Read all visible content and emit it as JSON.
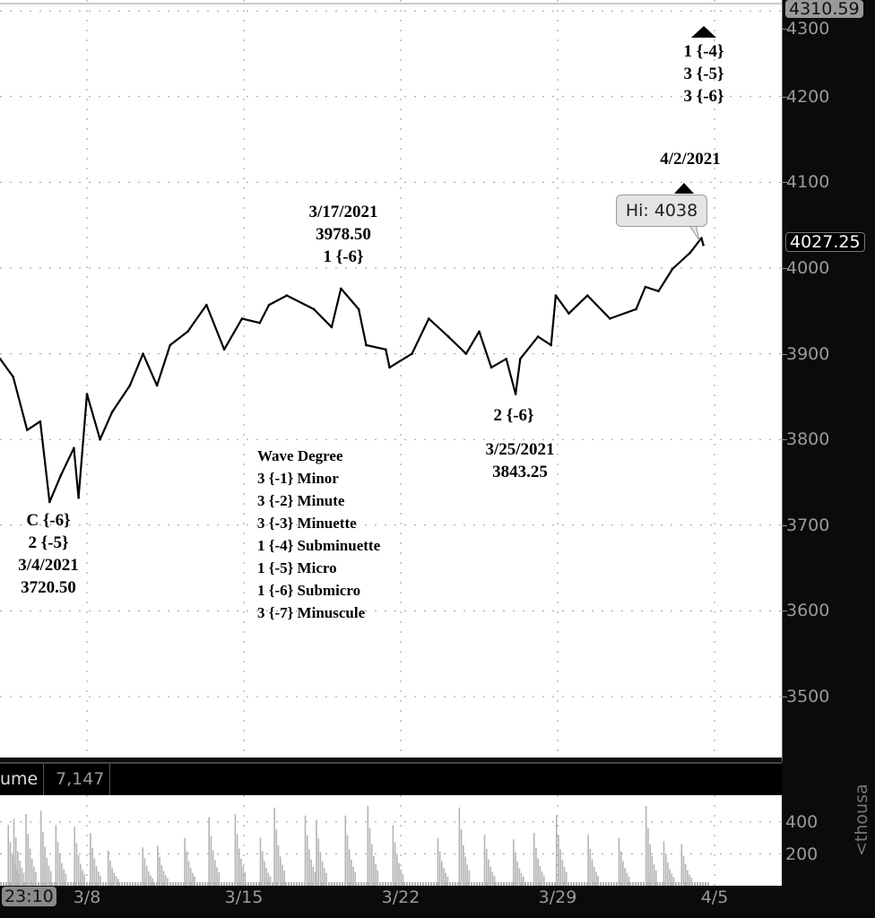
{
  "chart_data": [
    {
      "type": "line",
      "title": "",
      "ylim": [
        3420,
        4310
      ],
      "xlim": [
        "2021-03-04T03:00",
        "2021-04-06T00:00"
      ],
      "grid": true,
      "yticks": [
        3500,
        3600,
        3700,
        3800,
        3900,
        4000,
        4100,
        4200,
        4300
      ],
      "xticks": [
        {
          "date": "2021-03-08",
          "label": "3/8"
        },
        {
          "date": "2021-03-15",
          "label": "3/15"
        },
        {
          "date": "2021-03-22",
          "label": "3/22"
        },
        {
          "date": "2021-03-29",
          "label": "3/29"
        },
        {
          "date": "2021-04-05",
          "label": "4/5"
        }
      ],
      "top_price_label": "4310.59",
      "last_price_label": "4027.25",
      "line_color": "#000000",
      "series": [
        {
          "points": [
            [
              "2021-03-04T03:00",
              3894
            ],
            [
              "2021-03-04T17:00",
              3873
            ],
            [
              "2021-03-05T08:00",
              3811
            ],
            [
              "2021-03-05T22:00",
              3821
            ],
            [
              "2021-03-06T08:00",
              3727
            ],
            [
              "2021-03-06T20:00",
              3758
            ],
            [
              "2021-03-07T10:00",
              3790
            ],
            [
              "2021-03-07T15:00",
              3732
            ],
            [
              "2021-03-08T00:00",
              3853
            ],
            [
              "2021-03-08T14:00",
              3800
            ],
            [
              "2021-03-09T03:00",
              3832
            ],
            [
              "2021-03-09T22:00",
              3863
            ],
            [
              "2021-03-10T12:00",
              3900
            ],
            [
              "2021-03-11T03:00",
              3863
            ],
            [
              "2021-03-11T17:00",
              3910
            ],
            [
              "2021-03-12T12:00",
              3926
            ],
            [
              "2021-03-13T08:00",
              3957
            ],
            [
              "2021-03-14T03:00",
              3905
            ],
            [
              "2021-03-14T22:00",
              3941
            ],
            [
              "2021-03-15T17:00",
              3936
            ],
            [
              "2021-03-16T03:00",
              3957
            ],
            [
              "2021-03-16T22:00",
              3968
            ],
            [
              "2021-03-18T03:00",
              3952
            ],
            [
              "2021-03-18T22:00",
              3931
            ],
            [
              "2021-03-19T08:00",
              3976
            ],
            [
              "2021-03-20T03:00",
              3952
            ],
            [
              "2021-03-20T11:00",
              3910
            ],
            [
              "2021-03-21T08:00",
              3905
            ],
            [
              "2021-03-21T12:00",
              3884
            ],
            [
              "2021-03-22T12:00",
              3900
            ],
            [
              "2021-03-23T06:00",
              3941
            ],
            [
              "2021-03-24T03:00",
              3920
            ],
            [
              "2021-03-24T22:00",
              3900
            ],
            [
              "2021-03-25T12:00",
              3926
            ],
            [
              "2021-03-26T01:00",
              3884
            ],
            [
              "2021-03-26T17:00",
              3894
            ],
            [
              "2021-03-27T03:00",
              3853
            ],
            [
              "2021-03-27T08:00",
              3894
            ],
            [
              "2021-03-28T03:00",
              3920
            ],
            [
              "2021-03-28T17:00",
              3910
            ],
            [
              "2021-03-28T22:00",
              3968
            ],
            [
              "2021-03-29T12:00",
              3947
            ],
            [
              "2021-03-30T08:00",
              3968
            ],
            [
              "2021-03-31T08:00",
              3941
            ],
            [
              "2021-04-01T12:00",
              3952
            ],
            [
              "2021-04-01T22:00",
              3978
            ],
            [
              "2021-04-02T12:00",
              3973
            ],
            [
              "2021-04-03T03:00",
              3999
            ],
            [
              "2021-04-03T22:00",
              4018
            ],
            [
              "2021-04-04T10:00",
              4035
            ],
            [
              "2021-04-04T12:00",
              4027
            ]
          ]
        }
      ],
      "annotations": {
        "low1": [
          "C {-6}",
          "2 {-5}",
          "3/4/2021",
          "3720.50"
        ],
        "high1": [
          "3/17/2021",
          "3978.50",
          "1 {-6}"
        ],
        "low2": [
          "2 {-6}",
          "3/25/2021",
          "3843.25"
        ],
        "high2_date": "4/2/2021",
        "projection": [
          "1 {-4}",
          "3 {-5}",
          "3 {-6}"
        ],
        "tooltip": "Hi: 4038",
        "legend": [
          "Wave Degree",
          "3 {-1} Minor",
          "3 {-2} Minute",
          "3 {-3} Minuette",
          "1 {-4} Subminuette",
          "1 {-5} Micro",
          "1 {-6} Submicro",
          "3 {-7} Minuscule"
        ]
      }
    },
    {
      "type": "bar",
      "title": "Volume",
      "ylim": [
        0,
        560
      ],
      "yticks": [
        200,
        400
      ],
      "unit_label": "<thousa",
      "header_label": "ume",
      "header_value": "7,147",
      "bar_color": "#b4b4b4",
      "spikes": [
        [
          "2021-03-04T11:00",
          380
        ],
        [
          "2021-03-04T17:00",
          420
        ],
        [
          "2021-03-05T06:00",
          450
        ],
        [
          "2021-03-05T22:00",
          470
        ],
        [
          "2021-03-06T14:00",
          380
        ],
        [
          "2021-03-07T10:00",
          370
        ],
        [
          "2021-03-08T03:00",
          330
        ],
        [
          "2021-03-08T22:00",
          220
        ],
        [
          "2021-03-10T11:00",
          240
        ],
        [
          "2021-03-11T03:00",
          250
        ],
        [
          "2021-03-12T08:00",
          300
        ],
        [
          "2021-03-13T10:00",
          430
        ],
        [
          "2021-03-14T14:00",
          450
        ],
        [
          "2021-03-15T17:00",
          300
        ],
        [
          "2021-03-16T08:00",
          490
        ],
        [
          "2021-03-17T17:00",
          440
        ],
        [
          "2021-03-18T05:00",
          410
        ],
        [
          "2021-03-19T12:00",
          440
        ],
        [
          "2021-03-20T12:00",
          500
        ],
        [
          "2021-03-21T15:00",
          380
        ],
        [
          "2021-03-23T15:00",
          300
        ],
        [
          "2021-03-24T14:00",
          490
        ],
        [
          "2021-03-25T17:00",
          320
        ],
        [
          "2021-03-27T00:00",
          290
        ],
        [
          "2021-03-27T22:00",
          330
        ],
        [
          "2021-03-28T22:00",
          440
        ],
        [
          "2021-03-30T08:00",
          320
        ],
        [
          "2021-03-31T17:00",
          300
        ],
        [
          "2021-04-01T22:00",
          500
        ],
        [
          "2021-04-02T17:00",
          280
        ],
        [
          "2021-04-03T12:00",
          260
        ]
      ]
    }
  ],
  "time_badge": "23:10"
}
